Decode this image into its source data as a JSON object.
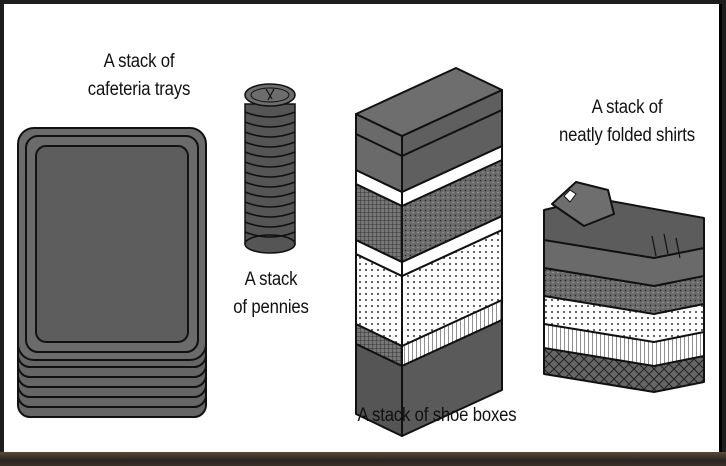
{
  "labels": {
    "trays": [
      "A stack of",
      "cafeteria trays"
    ],
    "pennies": [
      "A stack",
      "of pennies"
    ],
    "boxes": "A stack of shoe boxes",
    "shirts": [
      "A stack of",
      "neatly folded shirts"
    ]
  },
  "colors": {
    "ink": "#111111",
    "fill_gray": "#6b6b6b",
    "dark_gray": "#4a4a4a",
    "paper": "#ffffff"
  }
}
